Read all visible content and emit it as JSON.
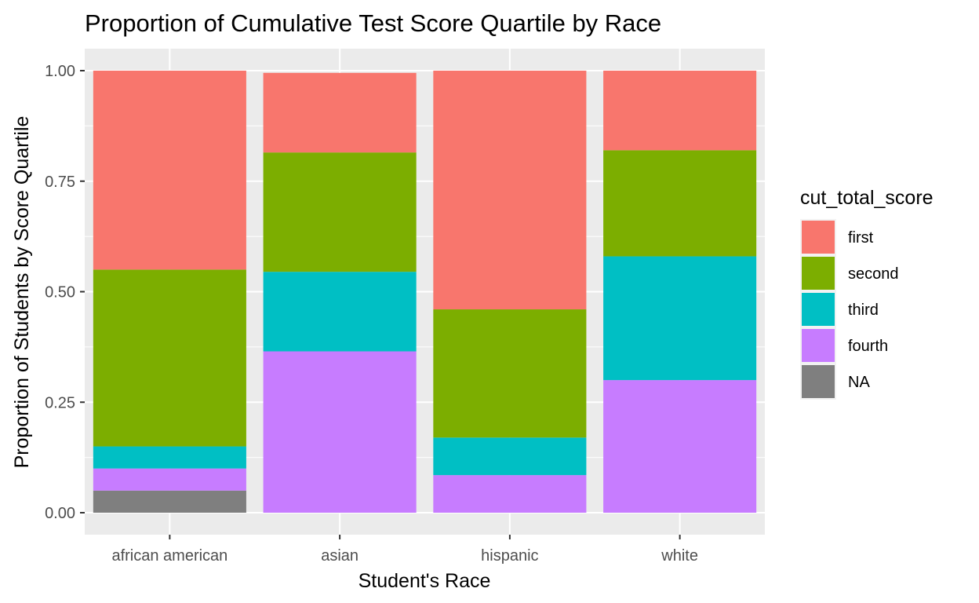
{
  "chart_data": {
    "type": "bar",
    "stacked": true,
    "title": "Proportion of Cumulative Test Score Quartile by Race",
    "xlabel": "Student's Race",
    "ylabel": "Proportion of Students by Score Quartile",
    "categories": [
      "african american",
      "asian",
      "hispanic",
      "white"
    ],
    "ylim": [
      0,
      1
    ],
    "yticks": [
      "0.00",
      "0.25",
      "0.50",
      "0.75",
      "1.00"
    ],
    "ytick_values": [
      0,
      0.25,
      0.5,
      0.75,
      1.0
    ],
    "grid": true,
    "legend": {
      "title": "cut_total_score",
      "position": "right"
    },
    "series": [
      {
        "name": "first",
        "color": "#F8766D",
        "values": [
          0.45,
          0.18,
          0.54,
          0.18
        ]
      },
      {
        "name": "second",
        "color": "#7CAE00",
        "values": [
          0.4,
          0.27,
          0.29,
          0.24
        ]
      },
      {
        "name": "third",
        "color": "#00BFC4",
        "values": [
          0.05,
          0.18,
          0.085,
          0.28
        ]
      },
      {
        "name": "fourth",
        "color": "#C77CFF",
        "values": [
          0.05,
          0.365,
          0.085,
          0.3
        ]
      },
      {
        "name": "NA",
        "color": "#7F7F7F",
        "values": [
          0.05,
          0.0,
          0.0,
          0.0
        ]
      }
    ],
    "stack_order_bottom_to_top": [
      "NA",
      "fourth",
      "third",
      "second",
      "first"
    ],
    "panel_background": "#EBEBEB",
    "grid_color": "#FFFFFF"
  }
}
